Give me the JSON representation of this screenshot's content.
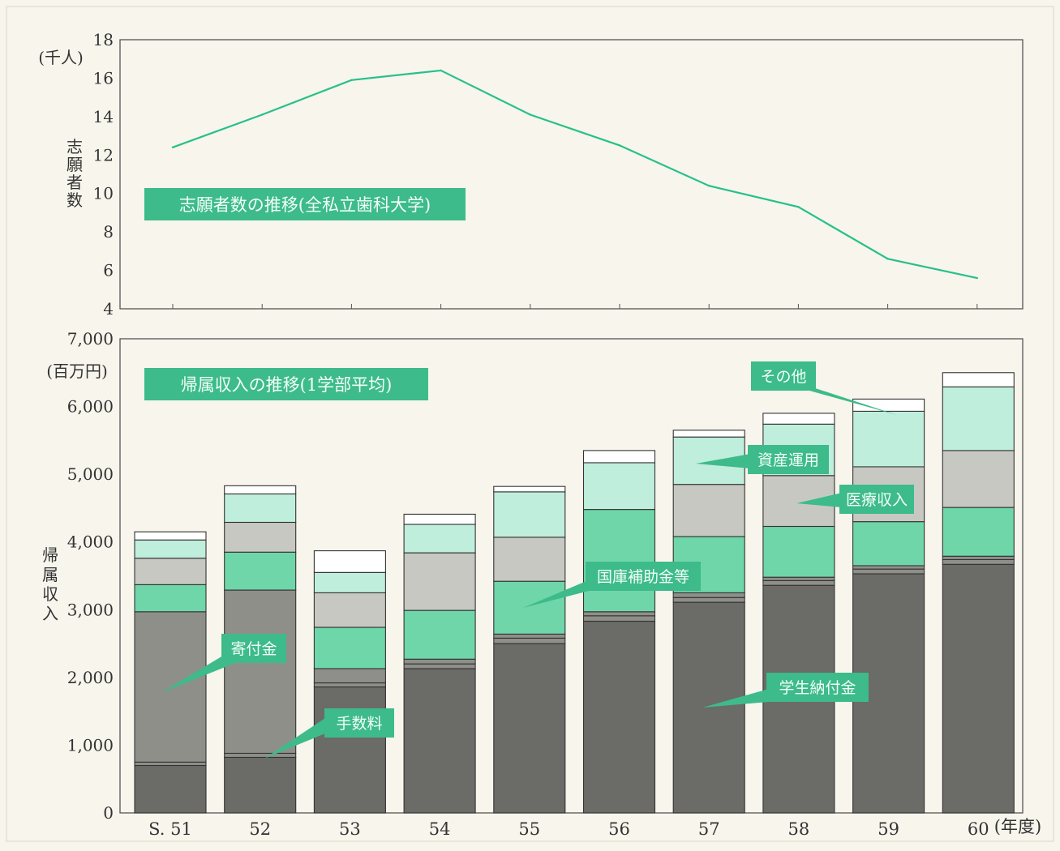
{
  "colors": {
    "accent": "#3dbb8a",
    "line": "#27c08a",
    "label_bg": "#3dbb8a",
    "label_text": "#ffffff",
    "tuition": "#6b6b67",
    "fees": "#8f8f8a",
    "donations": "#8f8f8a",
    "subsidies": "#6fd6a9",
    "medical": "#c8c8c2",
    "assets": "#bfeedd",
    "other": "#ffffff"
  },
  "chart_data": [
    {
      "type": "line",
      "title": "志願者数の推移(全私立歯科大学)",
      "ylabel": "志\n願\n者\n数",
      "unit": "(千人)",
      "ylim": [
        4,
        18
      ],
      "yticks": [
        4,
        6,
        8,
        10,
        12,
        14,
        16,
        18
      ],
      "x": [
        "S. 51",
        "52",
        "53",
        "54",
        "55",
        "56",
        "57",
        "58",
        "59",
        "60"
      ],
      "series": [
        {
          "values": [
            12.4,
            14.1,
            15.9,
            16.4,
            14.1,
            12.5,
            10.4,
            9.3,
            6.6,
            5.6
          ]
        }
      ],
      "grid": false
    },
    {
      "type": "bar",
      "stacked": true,
      "title": "帰属収入の推移(1学部平均)",
      "ylabel": "帰\n属\n収\n入",
      "unit": "(百万円)",
      "xunit": "(年度)",
      "ylim": [
        0,
        7000
      ],
      "yticks": [
        0,
        1000,
        2000,
        3000,
        4000,
        5000,
        6000,
        7000
      ],
      "ytick_labels": [
        "0",
        "1,000",
        "2,000",
        "3,000",
        "4,000",
        "5,000",
        "6,000",
        "7,000"
      ],
      "categories": [
        "S. 51",
        "52",
        "53",
        "54",
        "55",
        "56",
        "57",
        "58",
        "59",
        "60"
      ],
      "series": [
        {
          "name": "学生納付金",
          "values": [
            700,
            820,
            1860,
            2130,
            2500,
            2830,
            3110,
            3360,
            3530,
            3670
          ]
        },
        {
          "name": "手数料",
          "values": [
            50,
            60,
            60,
            70,
            80,
            80,
            70,
            70,
            70,
            70
          ]
        },
        {
          "name": "寄付金",
          "values": [
            2220,
            2410,
            210,
            70,
            60,
            60,
            70,
            50,
            50,
            50
          ]
        },
        {
          "name": "国庫補助金等",
          "values": [
            400,
            560,
            610,
            720,
            780,
            1510,
            830,
            750,
            650,
            720
          ]
        },
        {
          "name": "医療収入",
          "values": [
            390,
            440,
            510,
            850,
            650,
            0,
            770,
            750,
            810,
            840
          ]
        },
        {
          "name": "資産運用",
          "values": [
            270,
            420,
            300,
            420,
            670,
            690,
            700,
            760,
            820,
            940
          ]
        },
        {
          "name": "その他",
          "values": [
            120,
            120,
            320,
            150,
            80,
            180,
            100,
            160,
            180,
            210
          ]
        }
      ],
      "annotations": [
        "その他",
        "資産運用",
        "医療収入",
        "国庫補助金等",
        "寄付金",
        "学生納付金",
        "手数料"
      ],
      "legend": "inline-callouts",
      "grid": false
    }
  ]
}
